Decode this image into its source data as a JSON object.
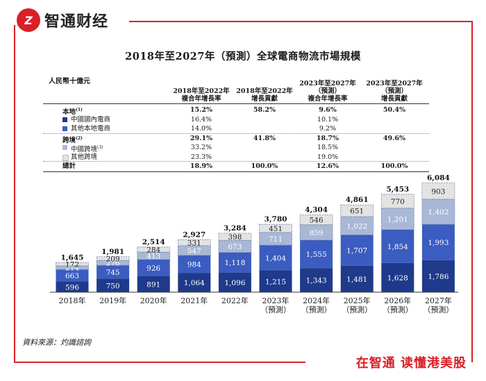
{
  "brand": {
    "logo_text": "Z",
    "name": "智通财经"
  },
  "slogan": "在智通 读懂港美股",
  "colors": {
    "brand_red": "#d92027",
    "navy": "#1f3a8a",
    "blue": "#3b5cc0",
    "light_blue": "#a9b8d6",
    "grey": "#e3e3e3"
  },
  "title": "2018年至2027年（預測）全球電商物流市場規模",
  "table": {
    "unit": "人民幣十億元",
    "headers": [
      "2018年至2022年\n複合年增長率",
      "2018年至2022年\n增長貢獻",
      "2023年至2027年\n（預測）\n複合年增長率",
      "2023年至2027年\n（預測）\n增長貢獻"
    ],
    "rows": [
      {
        "label": "本地",
        "sup": "(1)",
        "values": [
          "15.2%",
          "58.2%",
          "9.6%",
          "50.4%"
        ],
        "bold": true,
        "swatch": ""
      },
      {
        "label": "中國國內電商",
        "sup": "",
        "values": [
          "16.4%",
          "",
          "10.1%",
          ""
        ],
        "bold": false,
        "swatch": "#1f3a8a"
      },
      {
        "label": "其他本地電商",
        "sup": "",
        "values": [
          "14.0%",
          "",
          "9.2%",
          ""
        ],
        "bold": false,
        "swatch": "#3b5cc0"
      },
      {
        "label": "跨境",
        "sup": "(2)",
        "values": [
          "29.1%",
          "41.8%",
          "18.7%",
          "49.6%"
        ],
        "bold": true,
        "swatch": ""
      },
      {
        "label": "中國跨境",
        "sup": "(3)",
        "values": [
          "33.2%",
          "",
          "18.5%",
          ""
        ],
        "bold": false,
        "swatch": "#a9b8d6"
      },
      {
        "label": "其他跨境",
        "sup": "",
        "values": [
          "23.3%",
          "",
          "19.0%",
          ""
        ],
        "bold": false,
        "swatch": "#e3e3e3"
      },
      {
        "label": "總計",
        "sup": "",
        "values": [
          "18.9%",
          "100.0%",
          "12.6%",
          "100.0%"
        ],
        "bold": true,
        "swatch": ""
      }
    ]
  },
  "chart_data": {
    "type": "bar",
    "stacked": true,
    "categories": [
      "2018年",
      "2019年",
      "2020年",
      "2021年",
      "2022年",
      "2023年\n（預測）",
      "2024年\n（預測）",
      "2025年\n（預測）",
      "2026年\n（預測）",
      "2027年\n（預測）"
    ],
    "series": [
      {
        "name": "中國國內電商",
        "color": "#1f3a8a",
        "values": [
          596,
          750,
          891,
          1064,
          1096,
          1215,
          1343,
          1481,
          1628,
          1786
        ]
      },
      {
        "name": "其他本地電商",
        "color": "#3b5cc0",
        "values": [
          663,
          745,
          926,
          984,
          1118,
          1404,
          1555,
          1707,
          1854,
          1993
        ]
      },
      {
        "name": "中國跨境",
        "color": "#a9b8d6",
        "values": [
          214,
          276,
          413,
          547,
          673,
          711,
          859,
          1022,
          1201,
          1402
        ]
      },
      {
        "name": "其他跨境",
        "color": "#e3e3e3",
        "values": [
          172,
          209,
          284,
          331,
          398,
          451,
          546,
          651,
          770,
          903
        ]
      }
    ],
    "totals": [
      "1,645",
      "1,981",
      "2,514",
      "2,927",
      "3,284",
      "3,780",
      "4,304",
      "4,861",
      "5,453",
      "6,084"
    ],
    "value_labels": [
      [
        "596",
        "750",
        "891",
        "1,064",
        "1,096",
        "1,215",
        "1,343",
        "1,481",
        "1,628",
        "1,786"
      ],
      [
        "663",
        "745",
        "926",
        "984",
        "1,118",
        "1,404",
        "1,555",
        "1,707",
        "1,854",
        "1,993"
      ],
      [
        "214",
        "276",
        "413",
        "547",
        "673",
        "711",
        "859",
        "1,022",
        "1,201",
        "1,402"
      ],
      [
        "172",
        "209",
        "284",
        "331",
        "398",
        "451",
        "546",
        "651",
        "770",
        "903"
      ]
    ],
    "ylim": [
      0,
      6300
    ]
  },
  "source": "資料來源：灼識諮詢"
}
